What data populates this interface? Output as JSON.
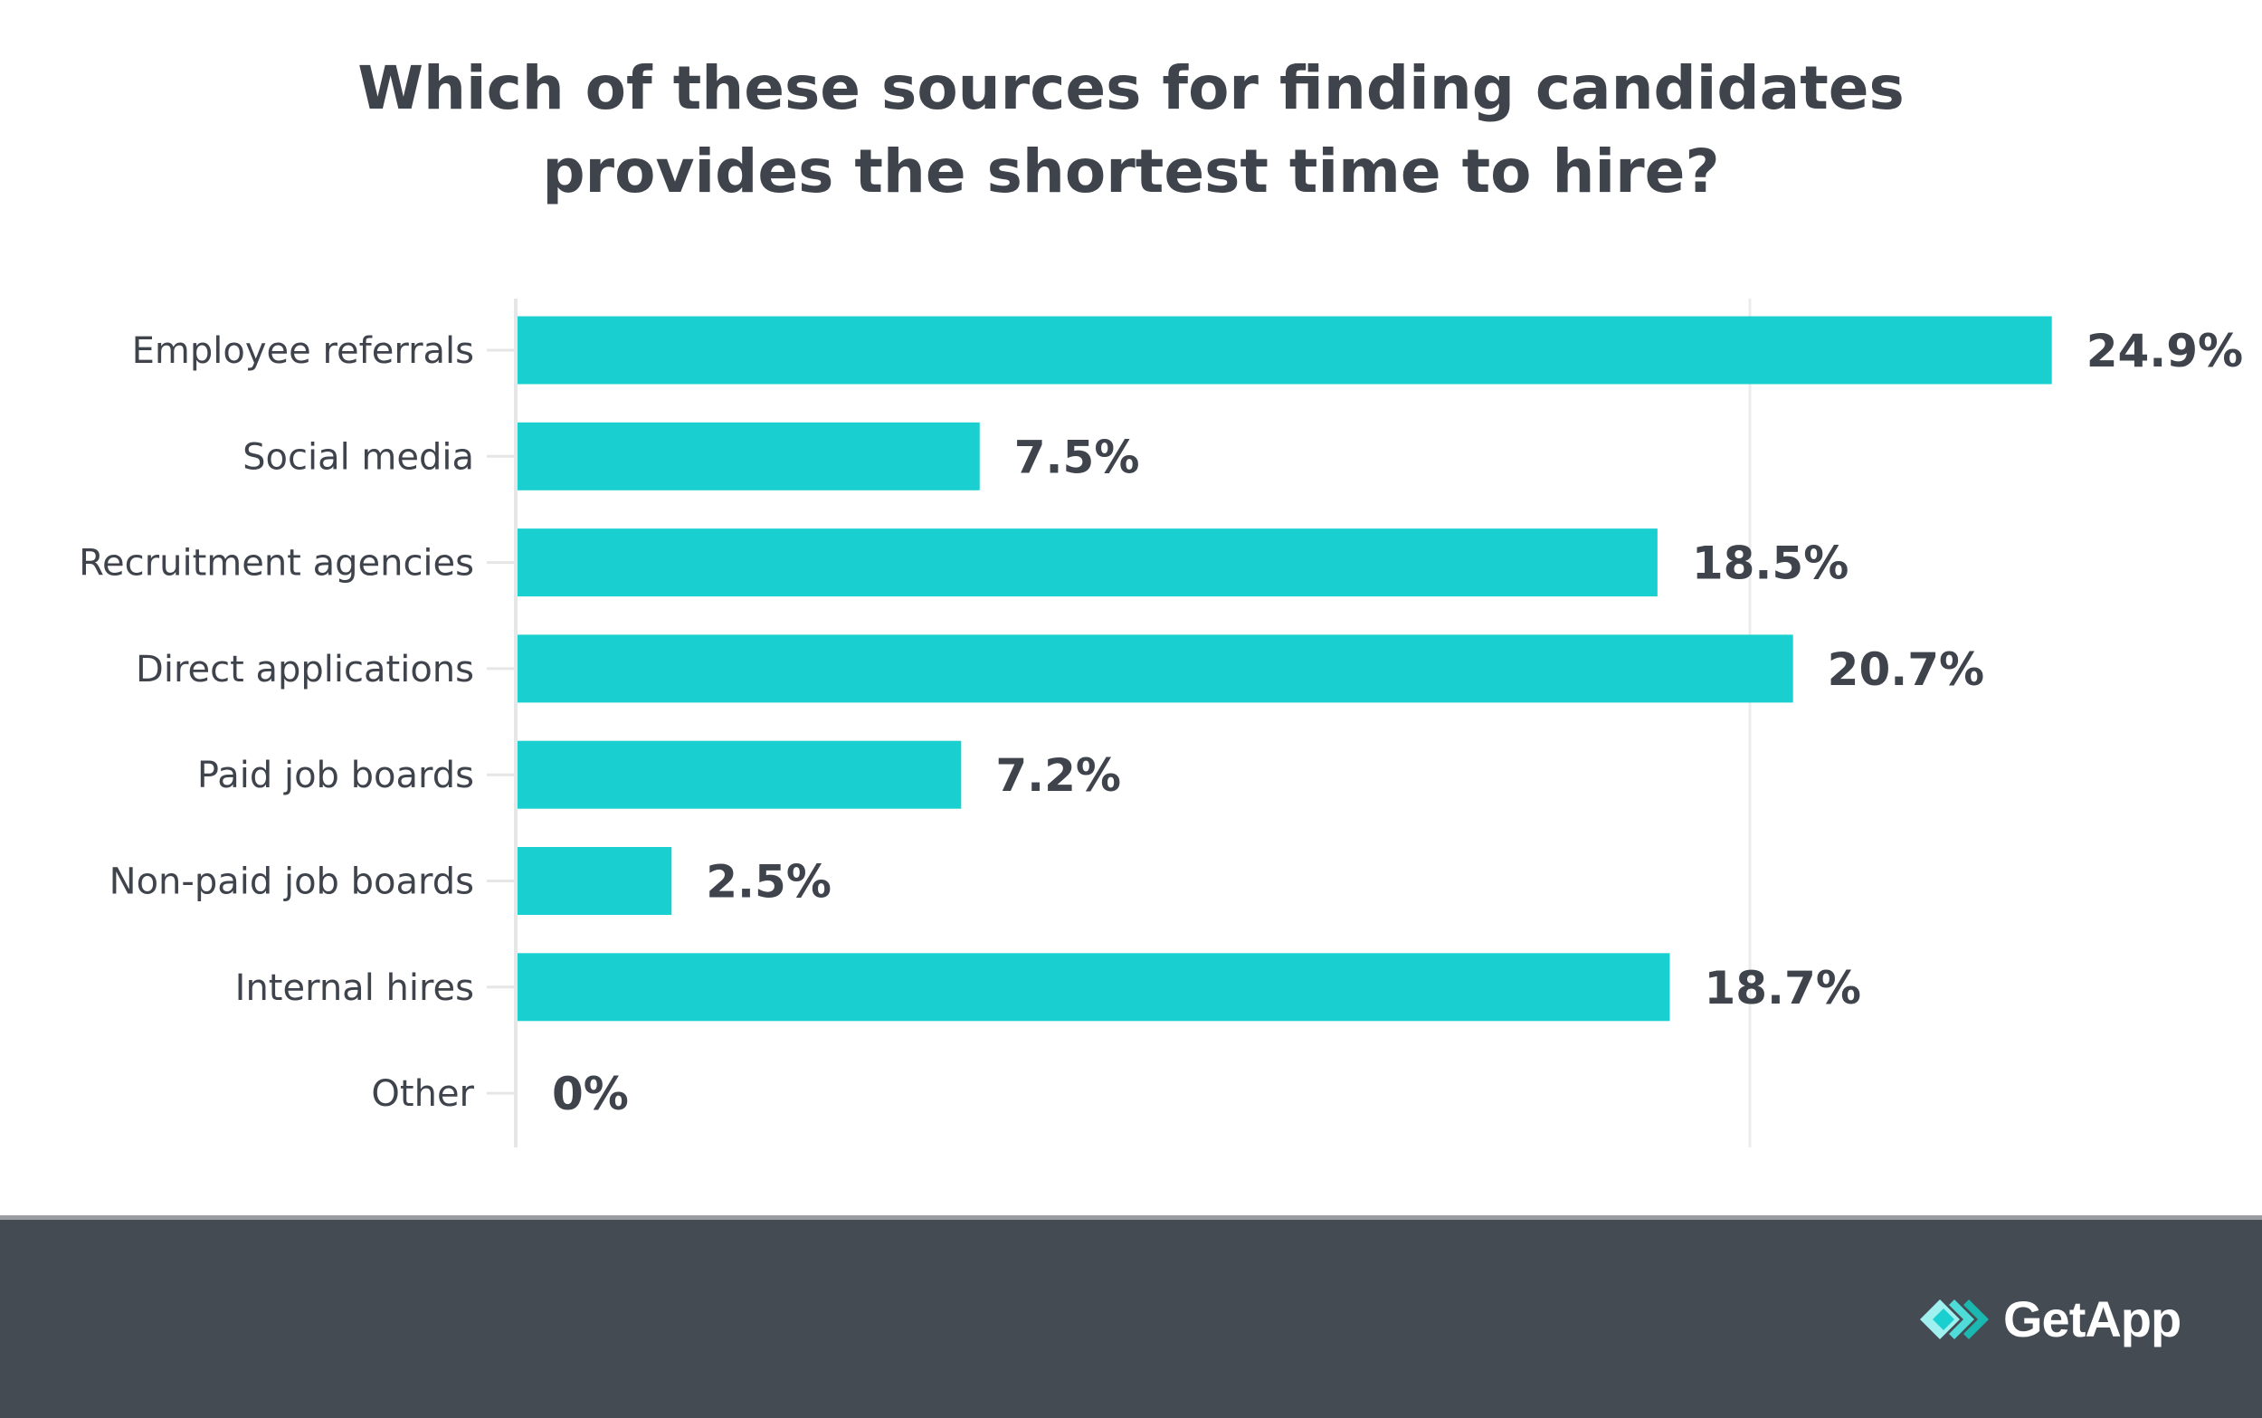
{
  "chart_data": {
    "type": "bar",
    "orientation": "horizontal",
    "title": [
      "Which of these sources for finding candidates",
      "provides the shortest time to hire?"
    ],
    "categories": [
      "Employee referrals",
      "Social media",
      "Recruitment agencies",
      "Direct applications",
      "Paid job boards",
      "Non-paid job boards",
      "Internal hires",
      "Other"
    ],
    "values": [
      24.9,
      7.5,
      18.5,
      20.7,
      7.2,
      2.5,
      18.7,
      0
    ],
    "data_labels": [
      "24.9%",
      "7.5%",
      "18.5%",
      "20.7%",
      "7.2%",
      "2.5%",
      "18.7%",
      "0%"
    ],
    "unit": "%",
    "xlim": [
      0,
      25
    ],
    "gridlines": [
      20
    ],
    "grid": true,
    "bar_color": "#19cfcf",
    "xlabel": "",
    "ylabel": ""
  },
  "footer": {
    "brand": "GetApp",
    "background": "#454b53"
  }
}
